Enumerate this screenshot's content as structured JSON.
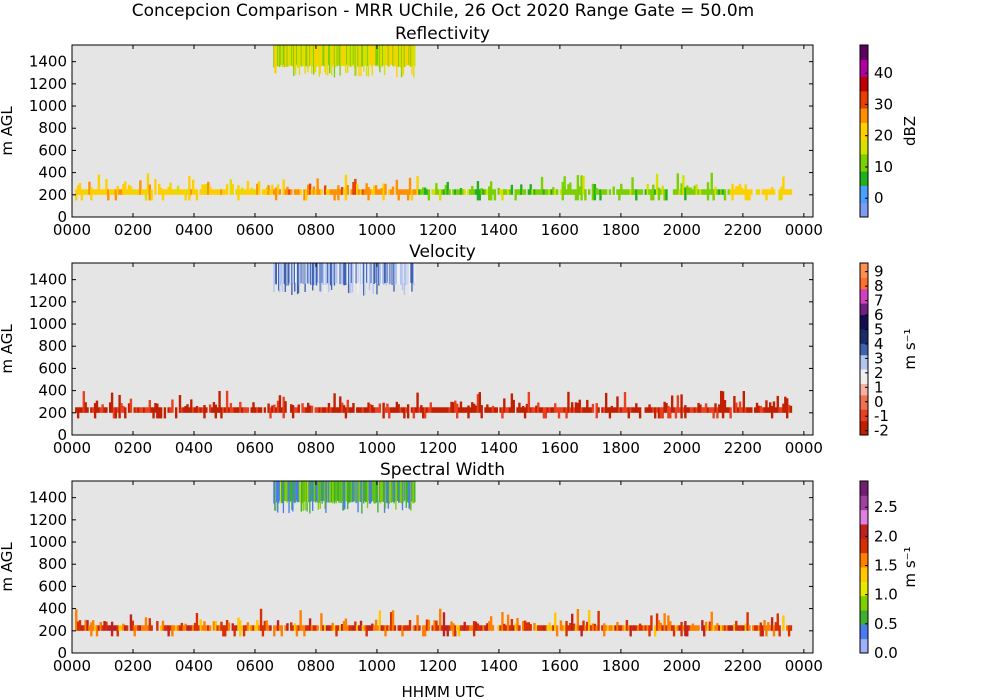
{
  "figure": {
    "suptitle": "Concepcion Comparison - MRR UChile, 26 Oct 2020 Range Gate = 50.0m",
    "xlabel": "HHMM UTC"
  },
  "colors": {
    "background": "#e5e5e5",
    "reflectivity_scale": [
      "#7f9cf4",
      "#4aa0ff",
      "#20b020",
      "#7ad000",
      "#d8e000",
      "#ffd000",
      "#ff9000",
      "#e84000",
      "#c00000",
      "#b000a0",
      "#600060"
    ],
    "velocity_scale": [
      "#c02000",
      "#e84020",
      "#f07050",
      "#f4b0a0",
      "#f0f0f0",
      "#b0c4ee",
      "#4060b0",
      "#1a2a6a",
      "#101050",
      "#702080",
      "#d040c0",
      "#ff7030",
      "#ff9050"
    ],
    "width_scale": [
      "#a0b0f8",
      "#4a7cf0",
      "#40b030",
      "#80d000",
      "#e8e800",
      "#ffc800",
      "#ff8000",
      "#d83000",
      "#c02020",
      "#e080e0",
      "#a040a0",
      "#702070"
    ]
  },
  "chart_data": [
    {
      "type": "heatmap",
      "title": "Reflectivity",
      "ylabel": "m AGL",
      "xlabel": "",
      "xticks": [
        "0000",
        "0200",
        "0400",
        "0600",
        "0800",
        "1000",
        "1200",
        "1400",
        "1600",
        "1800",
        "2000",
        "2200",
        "0000"
      ],
      "yticks": [
        0,
        200,
        400,
        600,
        800,
        1000,
        1200,
        1400
      ],
      "xlim_hours": [
        0,
        24.3
      ],
      "ylim": [
        0,
        1550
      ],
      "colorbar": {
        "label": "dBZ",
        "ticks": [
          "0",
          "10",
          "20",
          "30",
          "40"
        ],
        "range": [
          -6,
          49
        ]
      },
      "upper_band": {
        "start_hour": 6.6,
        "end_hour": 11.25,
        "bottom_m": 1400,
        "top_m": 1550,
        "value_range": [
          10,
          22
        ]
      },
      "lower_band": {
        "start_hour": 0.1,
        "end_hour": 23.6,
        "bottom_m": 150,
        "top_m": 400,
        "segments": [
          {
            "from": 0.0,
            "to": 6.5,
            "value_range": [
              18,
              25
            ]
          },
          {
            "from": 6.5,
            "to": 11.3,
            "value_range": [
              22,
              30
            ]
          },
          {
            "from": 11.3,
            "to": 21.5,
            "value_range": [
              8,
              15
            ]
          },
          {
            "from": 21.5,
            "to": 24.0,
            "value_range": [
              18,
              24
            ]
          }
        ]
      }
    },
    {
      "type": "heatmap",
      "title": "Velocity",
      "ylabel": "m AGL",
      "xlabel": "",
      "xticks": [
        "0000",
        "0200",
        "0400",
        "0600",
        "0800",
        "1000",
        "1200",
        "1400",
        "1600",
        "1800",
        "2000",
        "2200",
        "0000"
      ],
      "yticks": [
        0,
        200,
        400,
        600,
        800,
        1000,
        1200,
        1400
      ],
      "xlim_hours": [
        0,
        24.3
      ],
      "ylim": [
        0,
        1550
      ],
      "colorbar": {
        "label": "m s⁻¹",
        "ticks": [
          "-2",
          "-1",
          "0",
          "1",
          "2",
          "3",
          "4",
          "5",
          "6",
          "7",
          "8",
          "9"
        ],
        "range": [
          -2.3,
          9.6
        ]
      },
      "upper_band": {
        "start_hour": 6.6,
        "end_hour": 11.25,
        "bottom_m": 1400,
        "top_m": 1550,
        "value_range": [
          1.8,
          3.8
        ]
      },
      "lower_band": {
        "start_hour": 0.1,
        "end_hour": 23.6,
        "bottom_m": 150,
        "top_m": 400,
        "segments": [
          {
            "from": 0.0,
            "to": 24.0,
            "value_range": [
              -2,
              -1
            ]
          }
        ]
      }
    },
    {
      "type": "heatmap",
      "title": "Spectral Width",
      "ylabel": "m AGL",
      "xlabel": "HHMM UTC",
      "xticks": [
        "0000",
        "0200",
        "0400",
        "0600",
        "0800",
        "1000",
        "1200",
        "1400",
        "1600",
        "1800",
        "2000",
        "2200",
        "0000"
      ],
      "yticks": [
        0,
        200,
        400,
        600,
        800,
        1000,
        1200,
        1400
      ],
      "xlim_hours": [
        0,
        24.3
      ],
      "ylim": [
        0,
        1550
      ],
      "colorbar": {
        "label": "m s⁻¹",
        "ticks": [
          "0.0",
          "0.5",
          "1.0",
          "1.5",
          "2.0",
          "2.5"
        ],
        "range": [
          0,
          2.95
        ]
      },
      "upper_band": {
        "start_hour": 6.6,
        "end_hour": 11.25,
        "bottom_m": 1400,
        "top_m": 1550,
        "value_range": [
          0.3,
          1.0
        ]
      },
      "lower_band": {
        "start_hour": 0.1,
        "end_hour": 23.6,
        "bottom_m": 150,
        "top_m": 400,
        "segments": [
          {
            "from": 0.0,
            "to": 24.0,
            "value_range": [
              1.4,
              2.1
            ]
          }
        ]
      }
    }
  ]
}
